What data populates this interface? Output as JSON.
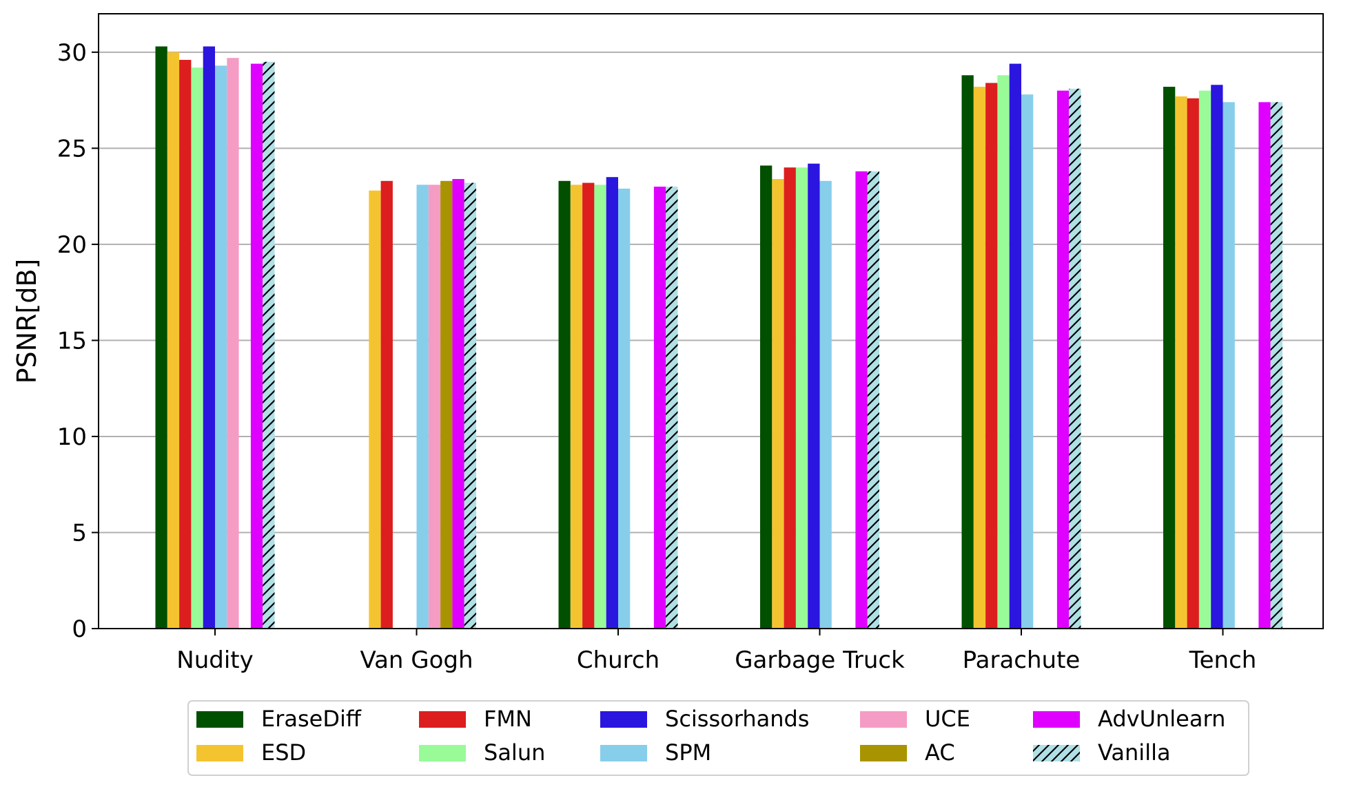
{
  "chart_data": {
    "type": "bar",
    "ylabel": "PSNR[dB]",
    "xlabel": "",
    "title": "",
    "ylim": [
      0,
      32
    ],
    "yticks": [
      0,
      5,
      10,
      15,
      20,
      25,
      30
    ],
    "grid": "horizontal",
    "legend_position": "bottom-center",
    "legend_columns": 5,
    "categories": [
      "Nudity",
      "Van Gogh",
      "Church",
      "Garbage Truck",
      "Parachute",
      "Tench"
    ],
    "series": [
      {
        "name": "EraseDiff",
        "color": "#005000",
        "values": [
          30.3,
          null,
          23.3,
          24.1,
          28.8,
          28.2
        ]
      },
      {
        "name": "ESD",
        "color": "#F4C430",
        "values": [
          30.0,
          22.8,
          23.1,
          23.4,
          28.2,
          27.7
        ]
      },
      {
        "name": "FMN",
        "color": "#DC1E1E",
        "values": [
          29.6,
          23.3,
          23.2,
          24.0,
          28.4,
          27.6
        ]
      },
      {
        "name": "Salun",
        "color": "#98FB98",
        "values": [
          29.2,
          null,
          23.1,
          24.0,
          28.8,
          28.0
        ]
      },
      {
        "name": "Scissorhands",
        "color": "#2A16DE",
        "values": [
          30.3,
          null,
          23.5,
          24.2,
          29.4,
          28.3
        ]
      },
      {
        "name": "SPM",
        "color": "#87CEEB",
        "values": [
          29.3,
          23.1,
          22.9,
          23.3,
          27.8,
          27.4
        ]
      },
      {
        "name": "UCE",
        "color": "#F59CC4",
        "values": [
          29.7,
          23.1,
          null,
          null,
          null,
          null
        ]
      },
      {
        "name": "AC",
        "color": "#A89400",
        "values": [
          null,
          23.3,
          null,
          null,
          null,
          null
        ]
      },
      {
        "name": "AdvUnlearn",
        "color": "#E000FF",
        "values": [
          29.4,
          23.4,
          23.0,
          23.8,
          28.0,
          27.4
        ]
      },
      {
        "name": "Vanilla",
        "color": "#B0E0E6",
        "hatch": "diagonal",
        "values": [
          29.5,
          23.2,
          23.0,
          23.8,
          28.1,
          27.4
        ]
      }
    ]
  }
}
